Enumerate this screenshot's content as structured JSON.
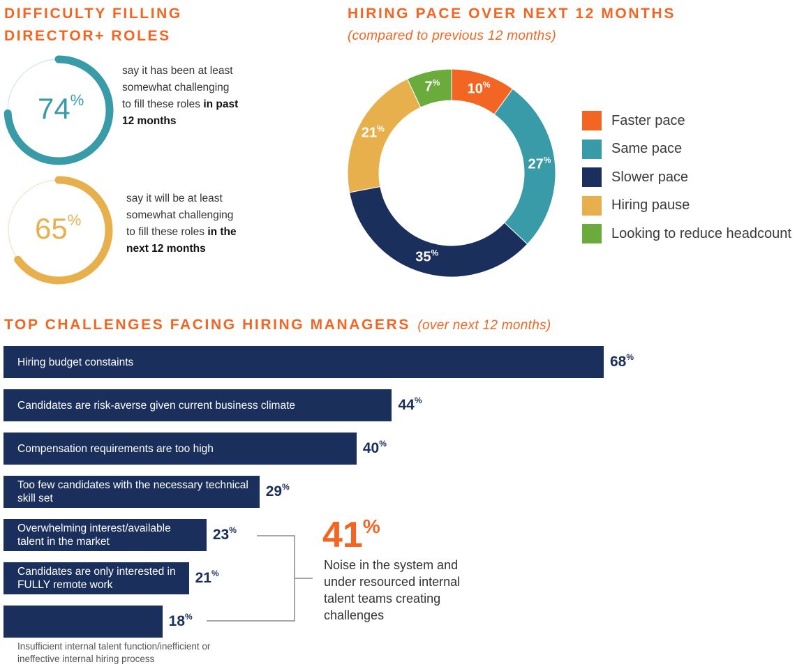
{
  "difficulty": {
    "title_line1": "DIFFICULTY FILLING",
    "title_line2": "DIRECTOR+ ROLES",
    "gauges": [
      {
        "value": 74,
        "value_label": "74",
        "color": "#3a9ba8",
        "text_plain": "say it has been at least somewhat challenging to fill these roles ",
        "text_bold": "in past 12 months"
      },
      {
        "value": 65,
        "value_label": "65",
        "color": "#e8b04d",
        "text_plain": "say it will be at least somewhat challenging to fill these roles ",
        "text_bold": "in the next 12 months"
      }
    ]
  },
  "hiring_pace": {
    "title": "HIRING PACE OVER NEXT 12 MONTHS",
    "subtitle": "(compared to previous 12 months)"
  },
  "challenges": {
    "title": "TOP CHALLENGES FACING HIRING MANAGERS",
    "subtitle": "(over next 12 months)",
    "callout": {
      "value": "41",
      "text": "Noise in the system and under resourced internal talent teams creating challenges"
    }
  },
  "chart_data": [
    {
      "type": "pie",
      "title": "HIRING PACE OVER NEXT 12 MONTHS",
      "subtitle": "(compared to previous 12 months)",
      "legend": "right",
      "slices": [
        {
          "name": "Faster pace",
          "value": 10,
          "color": "#f26522"
        },
        {
          "name": "Same pace",
          "value": 27,
          "color": "#3a9ba8"
        },
        {
          "name": "Slower pace",
          "value": 35,
          "color": "#1b2f5c"
        },
        {
          "name": "Hiring pause",
          "value": 21,
          "color": "#e8b04d"
        },
        {
          "name": "Looking to reduce headcount",
          "value": 7,
          "color": "#6aab3c"
        }
      ]
    },
    {
      "type": "bar",
      "orientation": "horizontal",
      "title": "TOP CHALLENGES FACING HIRING MANAGERS",
      "subtitle": "(over next 12 months)",
      "bar_color": "#1b2f5c",
      "categories": [
        "Hiring budget constaints",
        "Candidates are risk-averse given current business climate",
        "Compensation requirements are too high",
        "Too few candidates with the necessary technical skill set",
        "Overwhelming interest/available talent in the market",
        "Candidates are only interested in FULLY remote work",
        "Insufficient internal talent function/inefficient or ineffective internal hiring process"
      ],
      "values": [
        68,
        44,
        40,
        29,
        23,
        21,
        18
      ]
    }
  ]
}
